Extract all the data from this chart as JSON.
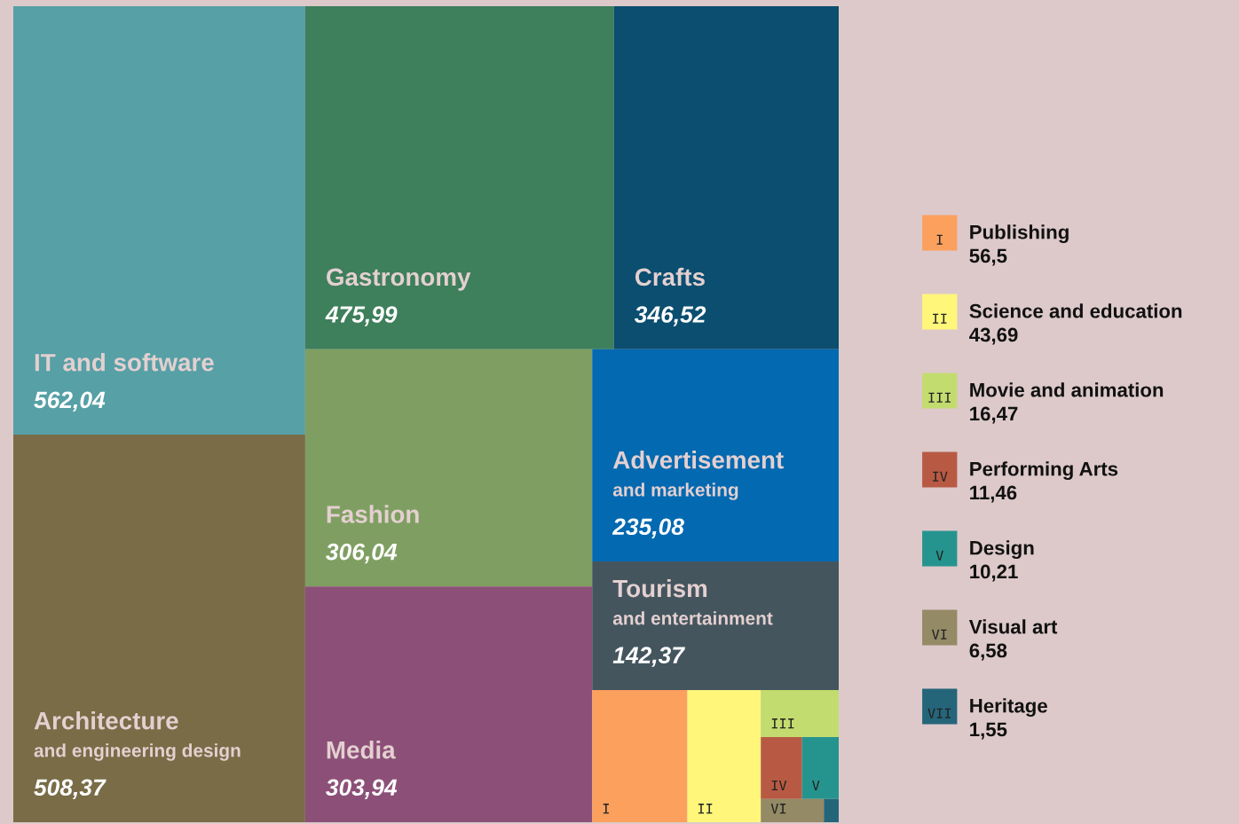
{
  "chart_data": {
    "type": "other",
    "categories": [
      "IT and software",
      "Architecture\nand engineering design",
      "Gastronomy",
      "Crafts",
      "Fashion",
      "Media",
      "Advertisement\nand marketing",
      "Tourism\nand entertainment",
      "Publishing",
      "Science and education",
      "Movie and animation",
      "Performing Arts",
      "Design",
      "Visual art",
      "Heritage"
    ],
    "values": [
      562.04,
      508.37,
      475.99,
      346.52,
      306.04,
      303.94,
      235.08,
      142.37,
      56.5,
      43.69,
      16.47,
      11.46,
      10.21,
      6.58,
      1.55
    ],
    "value_labels": [
      "562,04",
      "508,37",
      "475,99",
      "346,52",
      "306,04",
      "303,94",
      "235,08",
      "142,37",
      "56,5",
      "43,69",
      "16,47",
      "11,46",
      "10,21",
      "6,58",
      "1,55"
    ],
    "colors": [
      "#56a0a6",
      "#796c47",
      "#3e7f5c",
      "#0b4e70",
      "#7f9f62",
      "#8c5078",
      "#0369b1",
      "#44555e",
      "#fca05e",
      "#fff67a",
      "#c3dc6f",
      "#b85a43",
      "#26948e",
      "#948a66",
      "#25657a"
    ],
    "annotations": [
      "I",
      "II",
      "III",
      "IV",
      "V",
      "VI",
      "VII"
    ]
  }
}
